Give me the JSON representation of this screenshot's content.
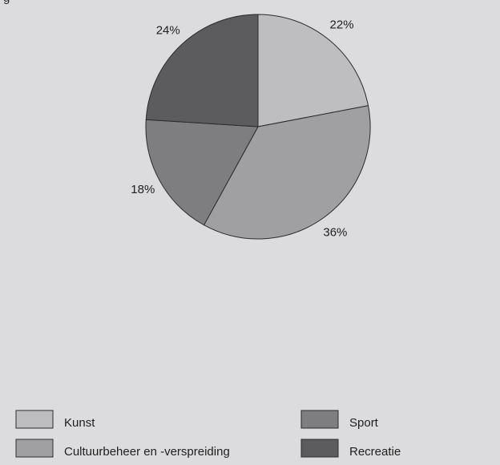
{
  "chart_data": {
    "type": "pie",
    "top_fragment": "g",
    "slices": [
      {
        "label": "Kunst",
        "value": 22,
        "display": "22%",
        "color": "#bebec0"
      },
      {
        "label": "Cultuurbeheer en -verspreiding",
        "value": 36,
        "display": "36%",
        "color": "#a0a0a2"
      },
      {
        "label": "Sport",
        "value": 18,
        "display": "18%",
        "color": "#7e7e80"
      },
      {
        "label": "Recreatie",
        "value": 24,
        "display": "24%",
        "color": "#5c5c5e"
      }
    ],
    "legend": {
      "placement": "bottom",
      "items": [
        {
          "label": "Kunst",
          "color": "#bebec0"
        },
        {
          "label": "Sport",
          "color": "#7e7e80"
        },
        {
          "label": "Cultuurbeheer en -verspreiding",
          "color": "#a0a0a2"
        },
        {
          "label": "Recreatie",
          "color": "#5c5c5e"
        }
      ]
    },
    "background": "#dcdcde",
    "start_angle": "12 o'clock",
    "direction": "clockwise"
  }
}
